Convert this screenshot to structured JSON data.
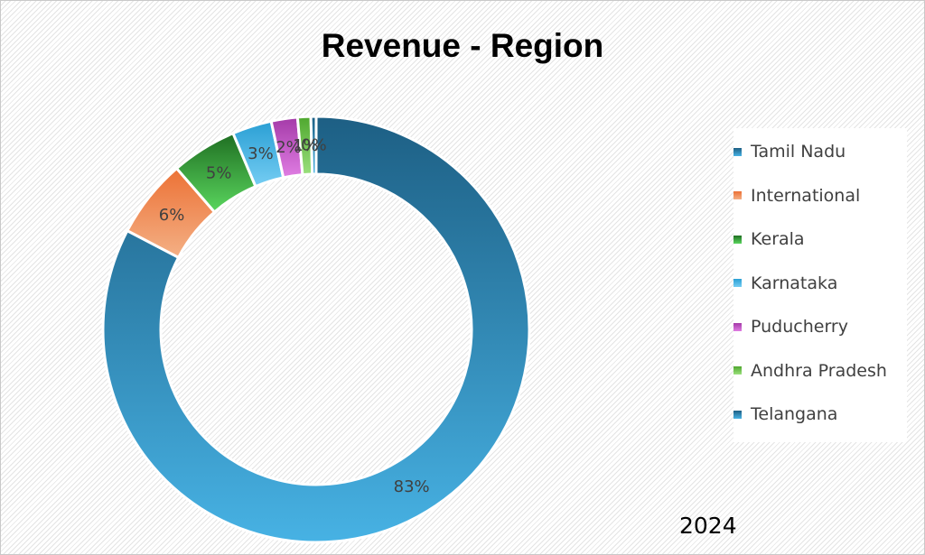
{
  "chart_data": {
    "type": "donut",
    "title": "Revenue - Region",
    "subtitle": "2024",
    "categories": [
      "Tamil Nadu",
      "International",
      "Kerala",
      "Karnataka",
      "Puducherry",
      "Andhra Pradesh",
      "Telangana"
    ],
    "values": [
      83,
      6,
      5,
      3,
      2,
      1,
      0
    ],
    "data_labels": [
      "83%",
      "6%",
      "5%",
      "3%",
      "2%",
      "1%",
      "0%"
    ],
    "colors": [
      [
        "#1d5f84",
        "#47b2e4"
      ],
      [
        "#ec7135",
        "#f4b085"
      ],
      [
        "#1f6e22",
        "#5ad65e"
      ],
      [
        "#2a9fd4",
        "#75cdf3"
      ],
      [
        "#a43aa8",
        "#e07de3"
      ],
      [
        "#4ea72e",
        "#9be07d"
      ],
      [
        "#1d5f84",
        "#47b2e4"
      ]
    ],
    "legend_position": "right"
  }
}
